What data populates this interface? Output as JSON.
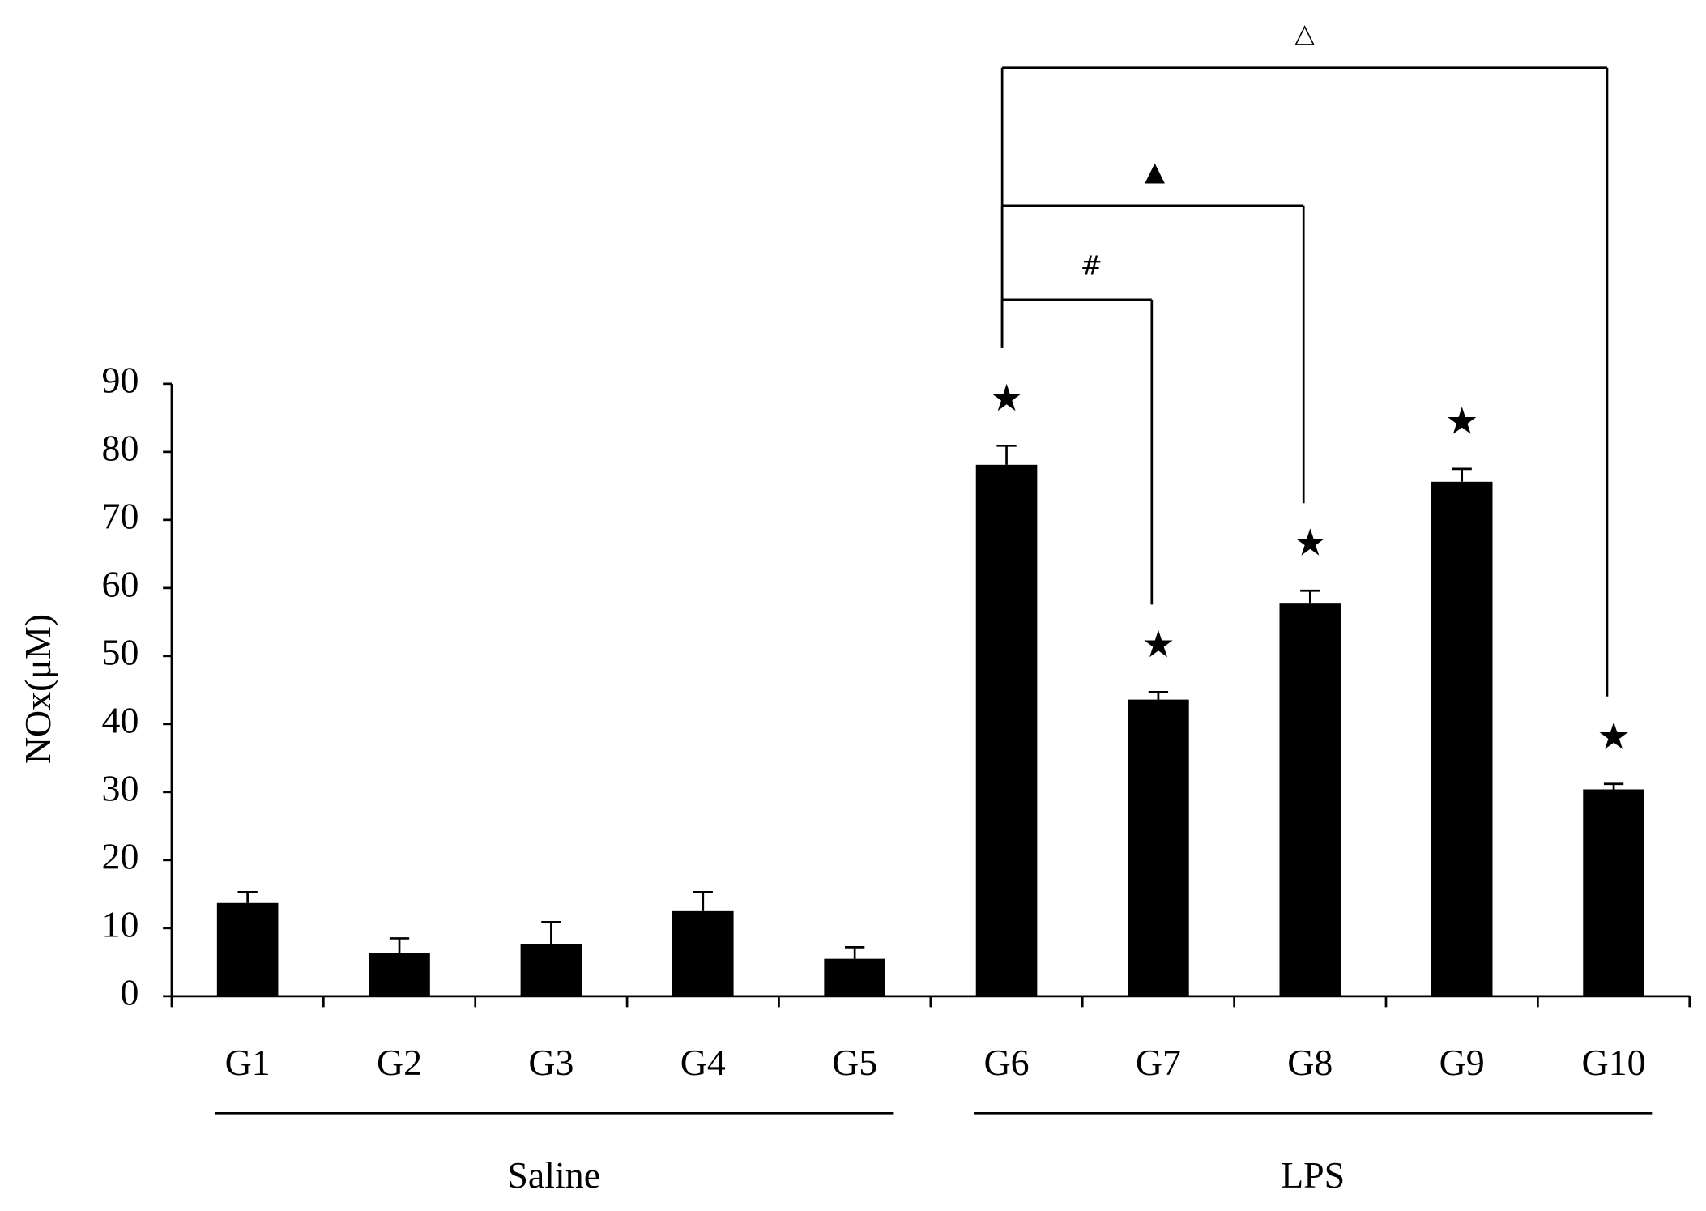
{
  "chart_data": {
    "type": "bar",
    "y_label": "NOx(μM)",
    "categories": [
      "G1",
      "G2",
      "G3",
      "G4",
      "G5",
      "G6",
      "G7",
      "G8",
      "G9",
      "G10"
    ],
    "values": [
      13.7,
      6.4,
      7.7,
      12.5,
      5.5,
      78.1,
      43.6,
      57.7,
      75.6,
      30.4
    ],
    "errors": [
      1.6,
      2.1,
      3.2,
      2.8,
      1.7,
      2.8,
      1.1,
      1.9,
      1.9,
      0.8
    ],
    "color": "#000000",
    "ylim": [
      0,
      90
    ],
    "yticks": [
      0,
      10,
      20,
      30,
      40,
      50,
      60,
      70,
      80,
      90
    ],
    "markers": [
      null,
      null,
      null,
      null,
      null,
      "★",
      "★",
      "★",
      "★",
      "★"
    ],
    "groups": [
      "Saline",
      "LPS"
    ],
    "comparisons": [
      {
        "label": "#",
        "pair": [
          5,
          6
        ]
      },
      {
        "label": "▲",
        "pair": [
          5,
          7
        ]
      },
      {
        "label": "△",
        "pair": [
          5,
          9
        ]
      }
    ]
  }
}
